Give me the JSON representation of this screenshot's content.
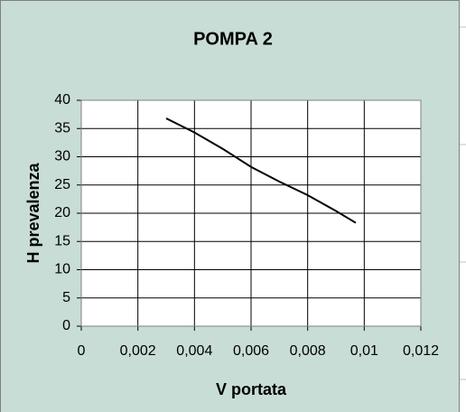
{
  "chart_data": {
    "type": "line",
    "title": "POMPA 2",
    "x_label": "V portata",
    "y_label": "H prevalenza",
    "x": [
      0.003,
      0.004,
      0.005,
      0.006,
      0.007,
      0.008,
      0.009,
      0.0097
    ],
    "series": [
      {
        "name": "H",
        "color": "#000000",
        "values": [
          36.8,
          34.3,
          31.4,
          28.2,
          25.6,
          23.2,
          20.4,
          18.3
        ]
      }
    ],
    "xlim": [
      0,
      0.012
    ],
    "xticks": [
      0,
      {
        "value": 0.002,
        "label": "0,002"
      },
      {
        "value": 0.004,
        "label": "0,004"
      },
      {
        "value": 0.006,
        "label": "0,006"
      },
      {
        "value": 0.008,
        "label": "0,008"
      },
      {
        "value": 0.01,
        "label": "0,01"
      },
      {
        "value": 0.012,
        "label": "0,012"
      }
    ],
    "ylim": [
      0,
      40
    ],
    "yticks": [
      0,
      5,
      10,
      15,
      20,
      25,
      30,
      35,
      40
    ],
    "grid": true
  }
}
